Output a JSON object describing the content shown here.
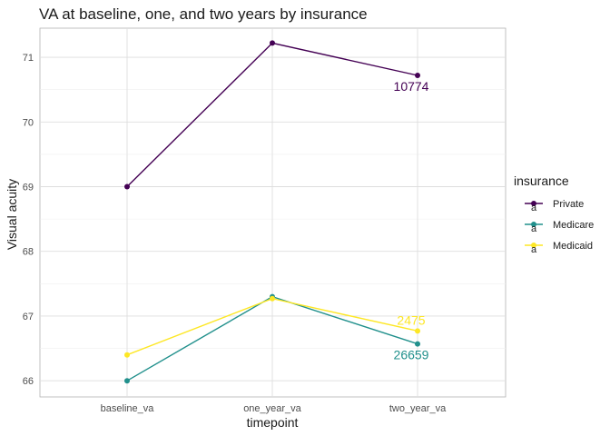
{
  "chart_data": {
    "type": "line",
    "title": "VA at baseline, one, and two years by insurance",
    "xlabel": "timepoint",
    "ylabel": "Visual acuity",
    "categories": [
      "baseline_va",
      "one_year_va",
      "two_year_va"
    ],
    "ylim": [
      65.75,
      71.45
    ],
    "yticks": [
      66,
      67,
      68,
      69,
      70,
      71
    ],
    "grid": true,
    "legend": {
      "title": "insurance",
      "placement": "right",
      "glyph": "a"
    },
    "series": [
      {
        "name": "Private",
        "color": "#440154",
        "values": [
          69.0,
          71.22,
          70.72
        ],
        "end_label": "10774"
      },
      {
        "name": "Medicare",
        "color": "#21908C",
        "values": [
          66.0,
          67.3,
          66.57
        ],
        "end_label": "26659"
      },
      {
        "name": "Medicaid",
        "color": "#FDE725",
        "values": [
          66.4,
          67.27,
          66.77
        ],
        "end_label": "2475"
      }
    ]
  }
}
